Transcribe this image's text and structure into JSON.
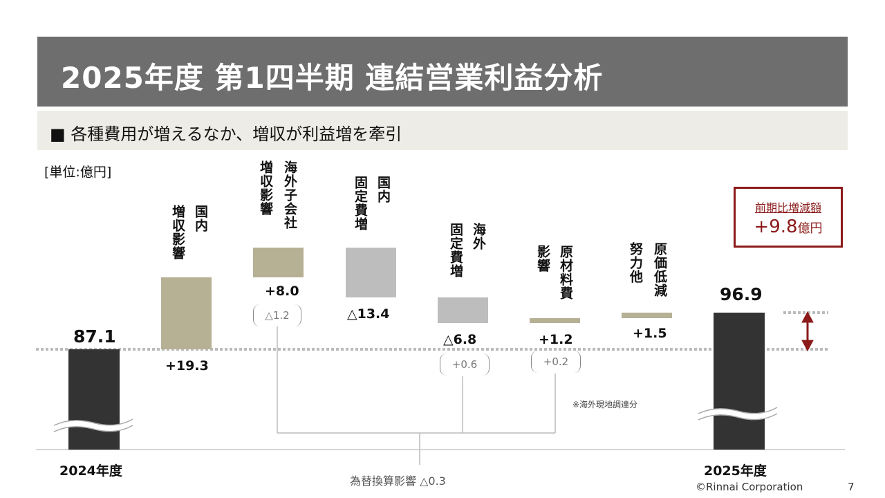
{
  "title": "2025年度 第1四半期 連結営業利益分析",
  "subtitle": "■ 各種費用が増えるなか、増収が利益増を牽引",
  "unit": "[単位:億円]",
  "chart_data": {
    "type": "waterfall",
    "start": {
      "label": "2024年度",
      "value": 87.1
    },
    "end": {
      "label": "2025年度",
      "value": 96.9
    },
    "steps": [
      {
        "label": "国内増収影響",
        "value_label": "+19.3",
        "value": 19.3
      },
      {
        "label": "海外子会社増収影響",
        "value_label": "+8.0",
        "value": 8.0,
        "fx_label": "△1.2",
        "fx_value": -1.2
      },
      {
        "label": "国内固定費増",
        "value_label": "△13.4",
        "value": -13.4
      },
      {
        "label": "海外固定費増",
        "value_label": "△6.8",
        "value": -6.8,
        "fx_label": "+0.6",
        "fx_value": 0.6
      },
      {
        "label": "原材料費影響",
        "value_label": "+1.2",
        "value": 1.2,
        "fx_label": "+0.2",
        "fx_value": 0.2
      },
      {
        "label": "原価低減努力他",
        "value_label": "+1.5",
        "value": 1.5
      }
    ],
    "fx_total_label": "為替換算影響 △0.3",
    "note": "※海外現地調達分",
    "difference": {
      "label": "前期比増減額",
      "value": "+9.8",
      "unit": "億円"
    }
  },
  "labels": {
    "s1": {
      "a": "国内",
      "b": "増収影響"
    },
    "s2": {
      "a": "海外子会社",
      "b": "増収影響"
    },
    "s3": {
      "a": "国内",
      "b": "固定費増"
    },
    "s4": {
      "a": "海外",
      "b": "固定費増"
    },
    "s5": {
      "a": "原材料費",
      "b": "影響"
    },
    "s6": {
      "a": "原価低減",
      "b": "努力他"
    }
  },
  "footer": {
    "copyright": "©Rinnai Corporation",
    "page": "7"
  }
}
